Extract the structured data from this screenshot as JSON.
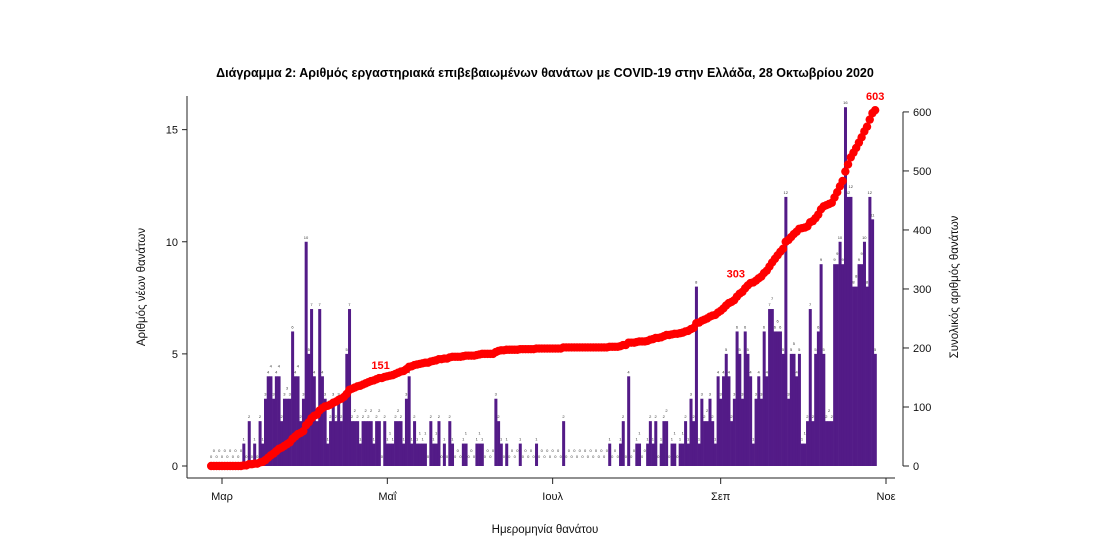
{
  "chart_data": {
    "type": "bar+line",
    "title": "Διάγραμμα 2: Αριθμός εργαστηριακά επιβεβαιωμένων θανάτων με COVID-19 στην Ελλάδα, 28 Οκτωβρίου 2020",
    "xlabel": "Ημερομηνία θανάτου",
    "ylabel": "Αριθμός νέων θανάτων",
    "y2label": "Συνολικός αριθμός θανάτων",
    "x_ticks": [
      {
        "date": "2020-03-01",
        "label": "Μαρ"
      },
      {
        "date": "2020-05-01",
        "label": "Μαΐ"
      },
      {
        "date": "2020-07-01",
        "label": "Ιουλ"
      },
      {
        "date": "2020-09-01",
        "label": "Σεπ"
      },
      {
        "date": "2020-11-01",
        "label": "Νοε"
      }
    ],
    "y_ticks": [
      0,
      5,
      10,
      15
    ],
    "y2_ticks": [
      0,
      100,
      200,
      300,
      400,
      500,
      600
    ],
    "ylim": [
      0,
      16.5
    ],
    "y2lim": [
      0,
      627
    ],
    "grid": false,
    "bar_color": "#531b87",
    "line_color": "#ff0000",
    "series": [
      {
        "kind": "bar",
        "axis": "left",
        "description_values": "daily new deaths, each month array indexed by day-of-month starting at 1; null = no data",
        "daily_by_month": {
          "2020-02": [
            null,
            null,
            null,
            null,
            null,
            null,
            null,
            null,
            null,
            null,
            null,
            null,
            null,
            null,
            null,
            null,
            null,
            null,
            null,
            null,
            null,
            null,
            null,
            null,
            null,
            0,
            0,
            0,
            0
          ],
          "2020-03": [
            0,
            0,
            0,
            0,
            0,
            0,
            0,
            0,
            1,
            0,
            2,
            0,
            1,
            0,
            2,
            1,
            3,
            4,
            4,
            3,
            4,
            4,
            2,
            3,
            3,
            3,
            6,
            4,
            4,
            2,
            3
          ],
          "2020-04": [
            10,
            5,
            7,
            4,
            2,
            7,
            4,
            3,
            1,
            2,
            3,
            2,
            3,
            2,
            3,
            5,
            7,
            2,
            2,
            2,
            1,
            2,
            2,
            2,
            2,
            1,
            2,
            2,
            0,
            2
          ],
          "2020-05": [
            1,
            1,
            1,
            2,
            2,
            2,
            1,
            3,
            4,
            1,
            2,
            1,
            1,
            1,
            1,
            0,
            2,
            1,
            1,
            2,
            0,
            1,
            0,
            2,
            1,
            0,
            0,
            0,
            1,
            1,
            0
          ],
          "2020-06": [
            0,
            0,
            1,
            1,
            1,
            0,
            0,
            0,
            0,
            3,
            2,
            1,
            0,
            1,
            0,
            0,
            0,
            0,
            1,
            0,
            0,
            0,
            0,
            0,
            1,
            0,
            0,
            0,
            0,
            0
          ],
          "2020-07": [
            0,
            0,
            0,
            0,
            2,
            0,
            0,
            0,
            0,
            0,
            0,
            0,
            0,
            0,
            0,
            0,
            0,
            0,
            0,
            0,
            0,
            1,
            0,
            0,
            0,
            1,
            2,
            0,
            4,
            0,
            0
          ],
          "2020-08": [
            1,
            1,
            0,
            0,
            1,
            2,
            1,
            2,
            0,
            1,
            2,
            2,
            0,
            1,
            1,
            0,
            1,
            1,
            2,
            1,
            3,
            2,
            8,
            1,
            3,
            2,
            2,
            3,
            2,
            1,
            4
          ],
          "2020-09": [
            3,
            4,
            5,
            4,
            2,
            3,
            6,
            5,
            3,
            6,
            5,
            4,
            1,
            3,
            4,
            3,
            6,
            4,
            7,
            7,
            6,
            6,
            6,
            5,
            12,
            3,
            5,
            5,
            4,
            5
          ],
          "2020-10": [
            1,
            1,
            2,
            7,
            2,
            5,
            6,
            9,
            5,
            2,
            2,
            2,
            9,
            9,
            10,
            9,
            16,
            12,
            12,
            8,
            8,
            9,
            9,
            10,
            8,
            12,
            11,
            5
          ]
        }
      },
      {
        "kind": "cumulative-points",
        "axis": "right",
        "of": "daily new deaths"
      }
    ],
    "annotations": [
      {
        "text": "151",
        "value": 151
      },
      {
        "text": "303",
        "value": 303
      },
      {
        "text": "603",
        "value": 603
      }
    ]
  }
}
